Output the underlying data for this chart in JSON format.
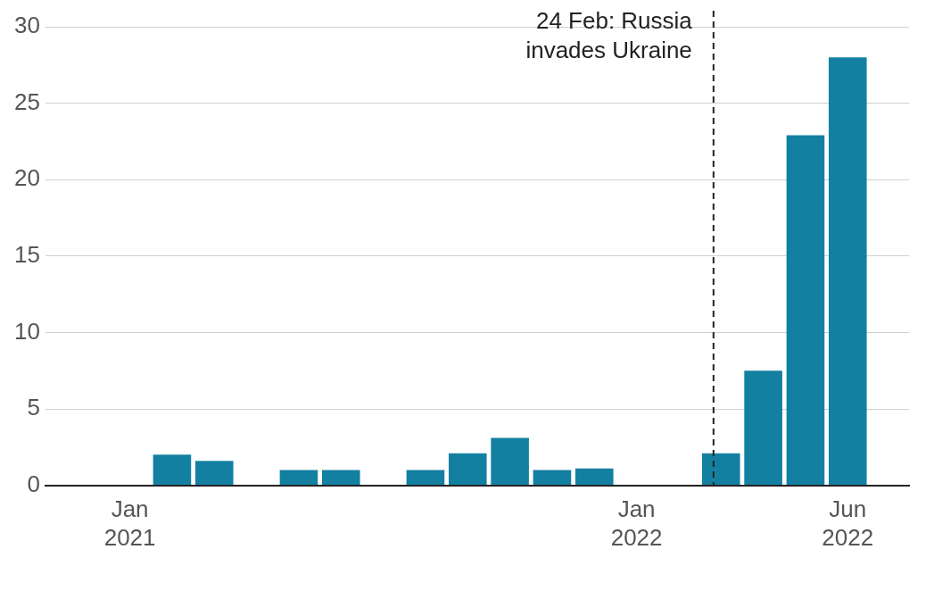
{
  "chart_data": {
    "type": "bar",
    "x": [
      "2021-02",
      "2021-03",
      "2021-04",
      "2021-05",
      "2021-06",
      "2021-07",
      "2021-08",
      "2021-09",
      "2021-10",
      "2021-11",
      "2021-12",
      "2022-01",
      "2022-02",
      "2022-03",
      "2022-04",
      "2022-05",
      "2022-06"
    ],
    "values": [
      2.0,
      1.6,
      null,
      1.0,
      1.0,
      null,
      1.0,
      2.1,
      3.1,
      1.0,
      1.1,
      null,
      null,
      2.1,
      7.5,
      22.9,
      28.0
    ],
    "color": "#1380a1",
    "xlim": [
      "2020-11",
      "2022-07-15"
    ],
    "xticks": [
      {
        "value": "2021-01",
        "label": "Jan 2021"
      },
      {
        "value": "2022-01",
        "label": "Jan 2022"
      },
      {
        "value": "2022-06",
        "label": "Jun 2022"
      }
    ],
    "ylim": [
      0,
      30
    ],
    "yticks": [
      0,
      5,
      10,
      15,
      20,
      25,
      30
    ],
    "grid": "y",
    "ref_lines": [
      {
        "axis": "x",
        "value": "2022-02-24",
        "label": "24 Feb: Russia invades Ukraine",
        "line_style": "dashed",
        "color": "#222222"
      }
    ]
  }
}
